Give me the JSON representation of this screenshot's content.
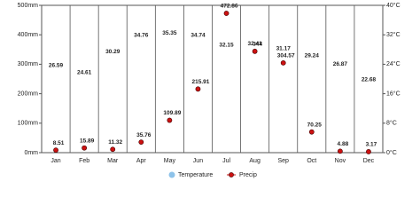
{
  "chart_data": {
    "type": "climate",
    "categories": [
      "Jan",
      "Feb",
      "Mar",
      "Apr",
      "May",
      "Jun",
      "Jul",
      "Aug",
      "Sep",
      "Oct",
      "Nov",
      "Dec"
    ],
    "series": [
      {
        "name": "Temperature",
        "color": "#8ec3ea",
        "axis": "y2",
        "values": [
          26.59,
          24.61,
          30.29,
          34.76,
          35.35,
          34.74,
          32.15,
          32.41,
          31.17,
          29.24,
          26.87,
          22.68
        ]
      },
      {
        "name": "Precip",
        "color": "#cc1111",
        "values": [
          8.51,
          15.89,
          11.32,
          35.76,
          109.89,
          215.91,
          472.86,
          344,
          304.57,
          70.25,
          4.88,
          3.17
        ]
      }
    ],
    "ylim": [
      0,
      500
    ],
    "yticks": [
      {
        "value": 0,
        "label": "0mm"
      },
      {
        "value": 100,
        "label": "100mm"
      },
      {
        "value": 200,
        "label": "200mm"
      },
      {
        "value": 300,
        "label": "300mm"
      },
      {
        "value": 400,
        "label": "400mm"
      },
      {
        "value": 500,
        "label": "500mm"
      }
    ],
    "y2lim": [
      0,
      40
    ],
    "y2ticks": [
      {
        "value": 0,
        "label": "0°C"
      },
      {
        "value": 8,
        "label": "8°C"
      },
      {
        "value": 16,
        "label": "16°C"
      },
      {
        "value": 24,
        "label": "24°C"
      },
      {
        "value": 32,
        "label": "32°C"
      },
      {
        "value": 40,
        "label": "40°C"
      }
    ],
    "grid": true
  }
}
